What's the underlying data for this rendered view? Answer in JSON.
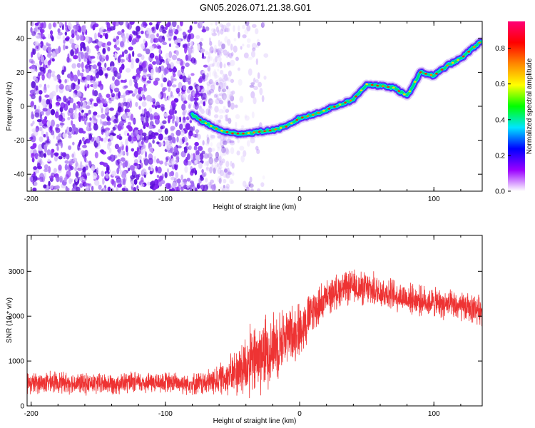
{
  "title": "GN05.2026.071.21.38.G01",
  "chart_data": [
    {
      "type": "heatmap",
      "xlabel": "Height of straight line (km)",
      "ylabel": "Frequency (Hz)",
      "xlim": [
        -203,
        136
      ],
      "ylim": [
        -50,
        50
      ],
      "xticks": [
        -200,
        -100,
        0,
        100
      ],
      "yticks": [
        -40,
        -20,
        0,
        20,
        40
      ],
      "colorbar": {
        "label": "Normalized spectral amplitude",
        "range": [
          0,
          0.95
        ],
        "ticks": [
          0.0,
          0.2,
          0.4,
          0.6,
          0.8
        ],
        "colors": [
          "#ffffff",
          "#9a00ff",
          "#0000ff",
          "#00e5ff",
          "#00ff00",
          "#ffff00",
          "#ff8800",
          "#ff0000",
          "#ff0077"
        ]
      },
      "noise_region": {
        "x_from": -200,
        "x_to": -50,
        "y_from": -50,
        "y_to": 50
      },
      "trace": {
        "x": [
          -80,
          -70,
          -60,
          -50,
          -40,
          -30,
          -20,
          -10,
          0,
          10,
          20,
          30,
          40,
          50,
          60,
          70,
          80,
          90,
          100,
          110,
          120,
          130,
          135
        ],
        "frequency": [
          -5,
          -10,
          -14,
          -16,
          -16,
          -15,
          -14,
          -12,
          -7,
          -5,
          -2,
          1,
          4,
          13,
          12,
          11,
          6,
          20,
          18,
          24,
          28,
          35,
          38
        ]
      },
      "grid": false,
      "legend": "colorbar-right"
    },
    {
      "type": "line",
      "xlabel": "Height of straight line (km)",
      "ylabel": "SNR (10 * v/v)",
      "xlim": [
        -203,
        136
      ],
      "ylim": [
        0,
        3800
      ],
      "xticks": [
        -200,
        -100,
        0,
        100
      ],
      "yticks": [
        0,
        1000,
        2000,
        3000
      ],
      "color": "#ee3333",
      "series": [
        {
          "x": [
            -203,
            -180,
            -160,
            -140,
            -120,
            -100,
            -80,
            -70,
            -60,
            -50,
            -40,
            -30,
            -20,
            -10,
            0,
            10,
            20,
            30,
            40,
            50,
            60,
            80,
            100,
            120,
            136
          ],
          "mean": [
            500,
            530,
            490,
            500,
            520,
            520,
            500,
            500,
            600,
            700,
            900,
            1100,
            1300,
            1550,
            1700,
            2100,
            2400,
            2600,
            2650,
            2600,
            2550,
            2400,
            2300,
            2200,
            2150
          ],
          "spread": [
            250,
            250,
            250,
            250,
            250,
            250,
            250,
            300,
            350,
            500,
            800,
            900,
            850,
            700,
            650,
            550,
            400,
            400,
            400,
            400,
            400,
            350,
            350,
            350,
            350
          ]
        }
      ],
      "grid": false
    }
  ]
}
